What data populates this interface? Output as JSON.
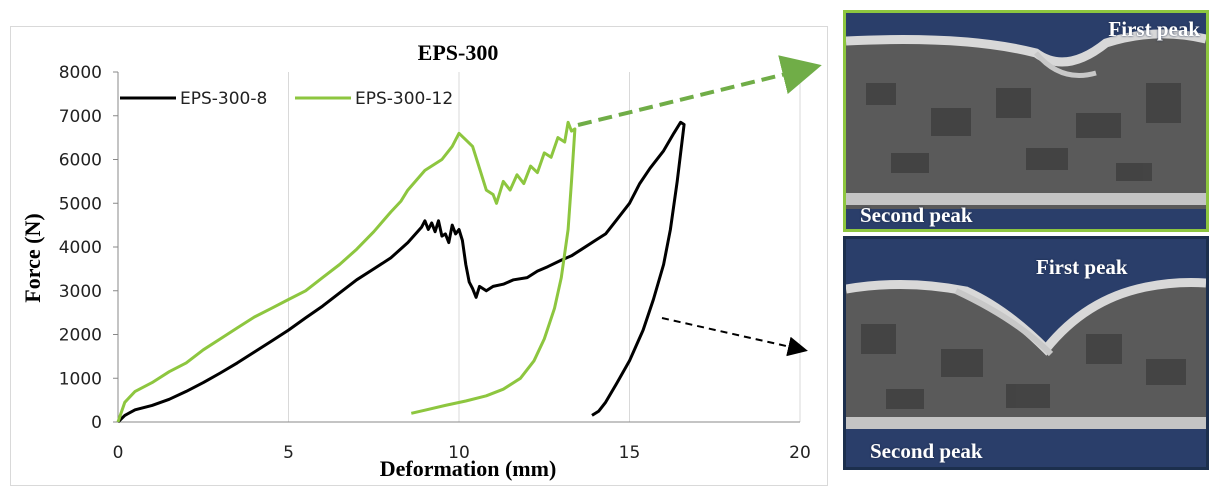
{
  "chart_data": {
    "type": "line",
    "title": "EPS-300",
    "xlabel": "Deformation (mm)",
    "ylabel": "Force (N)",
    "xlim": [
      0,
      20
    ],
    "ylim": [
      0,
      8000
    ],
    "xticks": [
      "0",
      "5",
      "10",
      "15",
      "20"
    ],
    "yticks": [
      "0",
      "1000",
      "2000",
      "3000",
      "4000",
      "5000",
      "6000",
      "7000",
      "8000"
    ],
    "grid": "vertical",
    "legend": "top-left",
    "series": [
      {
        "name": "EPS-300-8",
        "color": "#000000",
        "points": [
          [
            0,
            0
          ],
          [
            0.2,
            150
          ],
          [
            0.5,
            280
          ],
          [
            1,
            380
          ],
          [
            1.5,
            520
          ],
          [
            2,
            700
          ],
          [
            2.5,
            900
          ],
          [
            3,
            1120
          ],
          [
            3.5,
            1350
          ],
          [
            4,
            1600
          ],
          [
            4.5,
            1850
          ],
          [
            5,
            2100
          ],
          [
            5.5,
            2380
          ],
          [
            6,
            2650
          ],
          [
            6.5,
            2950
          ],
          [
            7,
            3250
          ],
          [
            7.5,
            3500
          ],
          [
            8,
            3750
          ],
          [
            8.5,
            4100
          ],
          [
            8.9,
            4450
          ],
          [
            9,
            4600
          ],
          [
            9.1,
            4400
          ],
          [
            9.2,
            4550
          ],
          [
            9.3,
            4350
          ],
          [
            9.4,
            4600
          ],
          [
            9.5,
            4250
          ],
          [
            9.6,
            4300
          ],
          [
            9.7,
            4100
          ],
          [
            9.8,
            4500
          ],
          [
            9.9,
            4300
          ],
          [
            10,
            4400
          ],
          [
            10.1,
            4150
          ],
          [
            10.2,
            3600
          ],
          [
            10.3,
            3200
          ],
          [
            10.4,
            3050
          ],
          [
            10.5,
            2850
          ],
          [
            10.6,
            3100
          ],
          [
            10.8,
            3000
          ],
          [
            11,
            3100
          ],
          [
            11.3,
            3150
          ],
          [
            11.6,
            3250
          ],
          [
            12,
            3300
          ],
          [
            12.3,
            3450
          ],
          [
            12.6,
            3550
          ],
          [
            13,
            3700
          ],
          [
            13.3,
            3800
          ],
          [
            13.6,
            3950
          ],
          [
            14,
            4150
          ],
          [
            14.3,
            4300
          ],
          [
            14.6,
            4600
          ],
          [
            15,
            5000
          ],
          [
            15.3,
            5450
          ],
          [
            15.6,
            5800
          ],
          [
            16,
            6200
          ],
          [
            16.3,
            6600
          ],
          [
            16.5,
            6850
          ],
          [
            16.6,
            6800
          ],
          [
            16.4,
            5500
          ],
          [
            16.2,
            4400
          ],
          [
            16,
            3600
          ],
          [
            15.7,
            2800
          ],
          [
            15.4,
            2100
          ],
          [
            15,
            1400
          ],
          [
            14.6,
            850
          ],
          [
            14.3,
            450
          ],
          [
            14.1,
            250
          ],
          [
            13.9,
            150
          ]
        ]
      },
      {
        "name": "EPS-300-12",
        "color": "#8dc63f",
        "points": [
          [
            0,
            0
          ],
          [
            0.2,
            450
          ],
          [
            0.5,
            700
          ],
          [
            1,
            900
          ],
          [
            1.5,
            1150
          ],
          [
            2,
            1350
          ],
          [
            2.5,
            1650
          ],
          [
            3,
            1900
          ],
          [
            3.5,
            2150
          ],
          [
            4,
            2400
          ],
          [
            4.5,
            2600
          ],
          [
            5,
            2800
          ],
          [
            5.5,
            3000
          ],
          [
            6,
            3300
          ],
          [
            6.5,
            3600
          ],
          [
            7,
            3950
          ],
          [
            7.5,
            4350
          ],
          [
            8,
            4800
          ],
          [
            8.3,
            5050
          ],
          [
            8.5,
            5300
          ],
          [
            9,
            5750
          ],
          [
            9.5,
            6000
          ],
          [
            9.8,
            6300
          ],
          [
            10,
            6600
          ],
          [
            10.2,
            6450
          ],
          [
            10.4,
            6300
          ],
          [
            10.6,
            5800
          ],
          [
            10.8,
            5300
          ],
          [
            11,
            5200
          ],
          [
            11.1,
            5000
          ],
          [
            11.3,
            5500
          ],
          [
            11.5,
            5300
          ],
          [
            11.7,
            5650
          ],
          [
            11.9,
            5450
          ],
          [
            12.1,
            5850
          ],
          [
            12.3,
            5700
          ],
          [
            12.5,
            6150
          ],
          [
            12.7,
            6050
          ],
          [
            12.9,
            6500
          ],
          [
            13.1,
            6400
          ],
          [
            13.2,
            6850
          ],
          [
            13.3,
            6650
          ],
          [
            13.4,
            6700
          ],
          [
            13.3,
            5500
          ],
          [
            13.2,
            4400
          ],
          [
            13,
            3300
          ],
          [
            12.8,
            2600
          ],
          [
            12.5,
            1900
          ],
          [
            12.2,
            1400
          ],
          [
            11.8,
            1000
          ],
          [
            11.3,
            750
          ],
          [
            10.8,
            600
          ],
          [
            10.2,
            480
          ],
          [
            9.6,
            380
          ],
          [
            9,
            270
          ],
          [
            8.6,
            200
          ]
        ]
      }
    ]
  },
  "photos": [
    {
      "first_peak": "First peak",
      "second_peak": "Second peak",
      "border_color": "#8dc63f",
      "arrow_color": "#70ad47"
    },
    {
      "first_peak": "First peak",
      "second_peak": "Second peak",
      "border_color": "#1c2f4d",
      "arrow_color": "#000000"
    }
  ]
}
